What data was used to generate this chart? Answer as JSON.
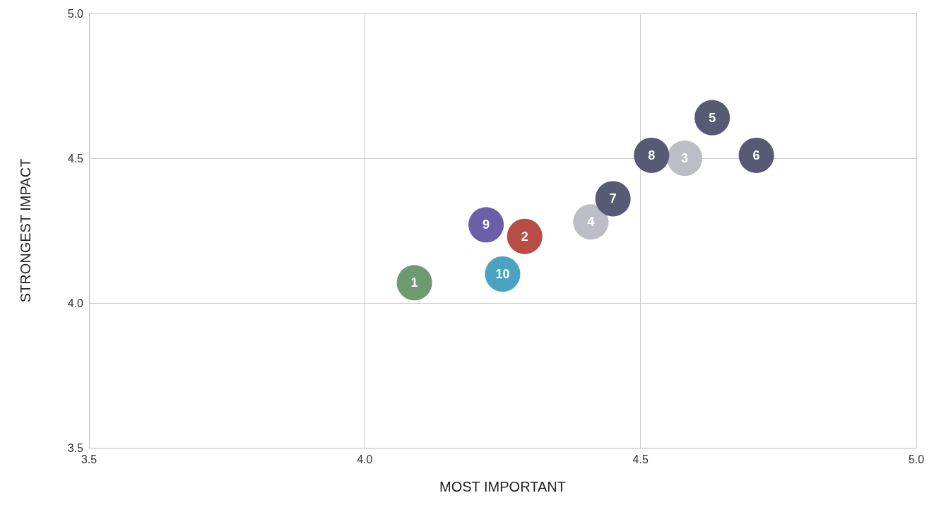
{
  "chart_data": {
    "type": "scatter",
    "xlabel": "MOST IMPORTANT",
    "ylabel": "STRONGEST IMPACT",
    "xlim": [
      3.5,
      5.0
    ],
    "xticks": [
      {
        "value": 3.5,
        "label": "3.5"
      },
      {
        "value": 4.0,
        "label": "4.0"
      },
      {
        "value": 4.5,
        "label": "4.5"
      },
      {
        "value": 5.0,
        "label": "5.0"
      }
    ],
    "ylim": [
      3.5,
      5.0
    ],
    "yticks": [
      {
        "value": 3.5,
        "label": "3.5"
      },
      {
        "value": 4.0,
        "label": "4.0"
      },
      {
        "value": 4.5,
        "label": "4.5"
      },
      {
        "value": 5.0,
        "label": "5.0"
      }
    ],
    "grid": true,
    "legend": false,
    "marker": "circle",
    "series": [
      {
        "name": "1",
        "color": "#6e9a70",
        "x": [
          4.09
        ],
        "values": [
          4.07
        ]
      },
      {
        "name": "2",
        "color": "#b84d45",
        "x": [
          4.29
        ],
        "values": [
          4.23
        ]
      },
      {
        "name": "3",
        "color": "#bdbdc8",
        "x": [
          4.58
        ],
        "values": [
          4.5
        ]
      },
      {
        "name": "4",
        "color": "#bdbdc8",
        "x": [
          4.41
        ],
        "values": [
          4.28
        ]
      },
      {
        "name": "5",
        "color": "#575a72",
        "x": [
          4.63
        ],
        "values": [
          4.64
        ]
      },
      {
        "name": "6",
        "color": "#575a72",
        "x": [
          4.71
        ],
        "values": [
          4.51
        ]
      },
      {
        "name": "7",
        "color": "#575a72",
        "x": [
          4.45
        ],
        "values": [
          4.36
        ]
      },
      {
        "name": "8",
        "color": "#575a72",
        "x": [
          4.52
        ],
        "values": [
          4.51
        ]
      },
      {
        "name": "9",
        "color": "#6a5fa8",
        "x": [
          4.22
        ],
        "values": [
          4.27
        ]
      },
      {
        "name": "10",
        "color": "#4aa3c0",
        "x": [
          4.25
        ],
        "values": [
          4.1
        ]
      }
    ]
  }
}
